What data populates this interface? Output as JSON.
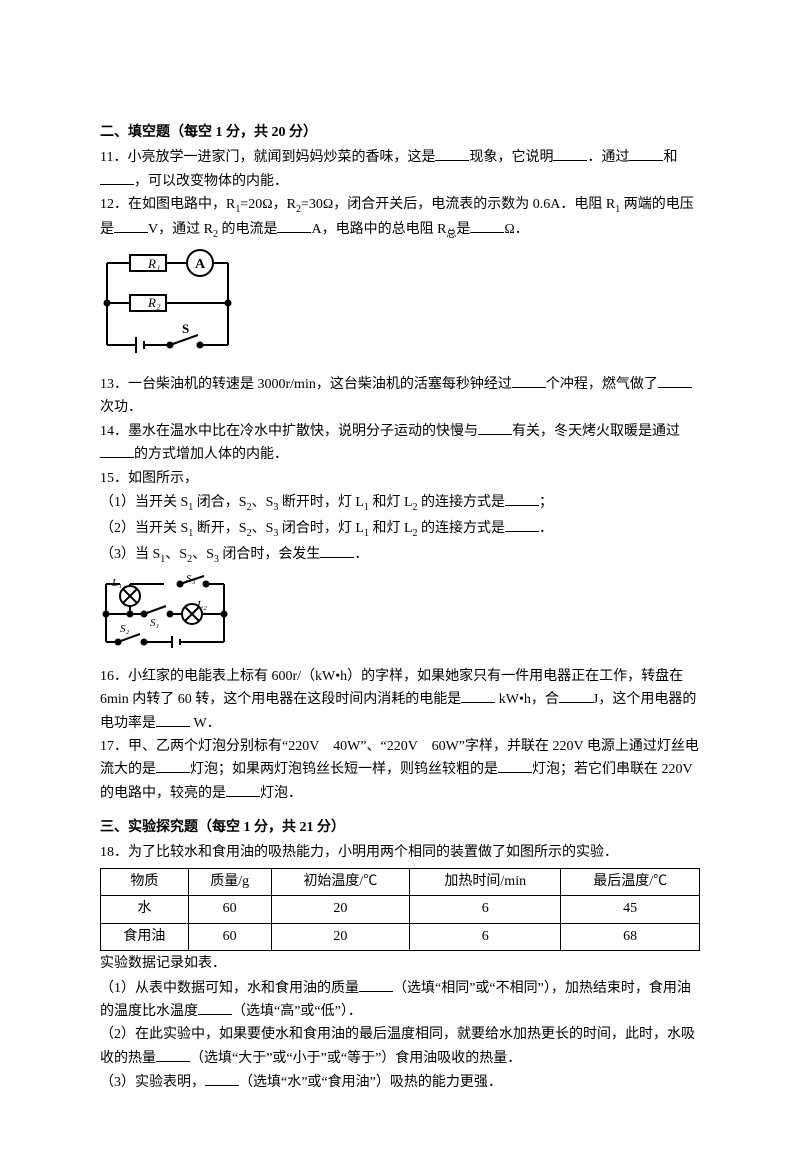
{
  "section2": {
    "title": "二、填空题（每空 1 分，共 20 分）",
    "q11": "11．小亮放学一进家门，就闻到妈妈炒菜的香味，这是____现象，它说明____．通过____和____，可以改变物体的内能．",
    "q12_a": "12．在如图电路中，R",
    "q12_b": "=20Ω，R",
    "q12_c": "=30Ω，闭合开关后，电流表的示数为 0.6A．电阻 R",
    "q12_d": " 两端的电压是____V，通过 R",
    "q12_e": " 的电流是____A，电路中的总电阻 R",
    "q12_f": "是____Ω．",
    "circuit1": {
      "R1": "R₁",
      "R2": "R₂",
      "A": "A",
      "S": "S"
    },
    "q13": "13．一台柴油机的转速是 3000r/min，这台柴油机的活塞每秒钟经过____个冲程，燃气做了____次功．",
    "q14": "14．墨水在温水中比在冷水中扩散快，说明分子运动的快慢与____有关，冬天烤火取暖是通过____的方式增加人体的内能．",
    "q15_stem": "15．如图所示，",
    "q15_1a": "（1）当开关 S",
    "q15_1b": " 闭合，S",
    "q15_1c": "、S",
    "q15_1d": " 断开时，灯 L",
    "q15_1e": " 和灯 L",
    "q15_1f": " 的连接方式是____；",
    "q15_2a": "（2）当开关 S",
    "q15_2b": " 断开，S",
    "q15_2c": "、S",
    "q15_2d": " 闭合时，灯 L",
    "q15_2e": " 和灯 L",
    "q15_2f": " 的连接方式是____．",
    "q15_3a": "（3）当 S",
    "q15_3b": "、S",
    "q15_3c": "、S",
    "q15_3d": " 闭合时，会发生____．",
    "circuit2": {
      "L1": "L₁",
      "L2": "L₂",
      "S1": "S₁",
      "S2": "S₂",
      "S3": "S₃"
    },
    "q16": "16．小红家的电能表上标有 600r/（kW•h）的字样，如果她家只有一件用电器正在工作，转盘在 6min 内转了 60 转，这个用电器在这段时间内消耗的电能是____ kW•h，合____J，这个用电器的电功率是____ W．",
    "q17": "17．甲、乙两个灯泡分别标有“220V　40W”、“220V　60W”字样，并联在 220V 电源上通过灯丝电流大的是____灯泡；如果两灯泡钨丝长短一样，则钨丝较粗的是____灯泡；若它们串联在 220V 的电路中，较亮的是____灯泡．"
  },
  "section3": {
    "title": "三、实验探究题（每空 1 分，共 21 分）",
    "q18_stem": "18．为了比较水和食用油的吸热能力，小明用两个相同的装置做了如图所示的实验．",
    "table": {
      "h1": "物质",
      "h2": "质量/g",
      "h3": "初始温度/℃",
      "h4": "加热时间/min",
      "h5": "最后温度/℃",
      "r1c1": "水",
      "r1c2": "60",
      "r1c3": "20",
      "r1c4": "6",
      "r1c5": "45",
      "r2c1": "食用油",
      "r2c2": "60",
      "r2c3": "20",
      "r2c4": "6",
      "r2c5": "68"
    },
    "q18_datanote": "实验数据记录如表．",
    "q18_1": "（1）从表中数据可知，水和食用油的质量____（选填“相同”或“不相同”），加热结束时，食用油的温度比水温度____（选填“高”或“低”）．",
    "q18_2": "（2）在此实验中，如果要使水和食用油的最后温度相同，就要给水加热更长的时间，此时，水吸收的热量____（选填“大于”或“小于”或“等于”）食用油吸收的热量．",
    "q18_3": "（3）实验表明，____（选填“水”或“食用油”）吸热的能力更强．"
  }
}
